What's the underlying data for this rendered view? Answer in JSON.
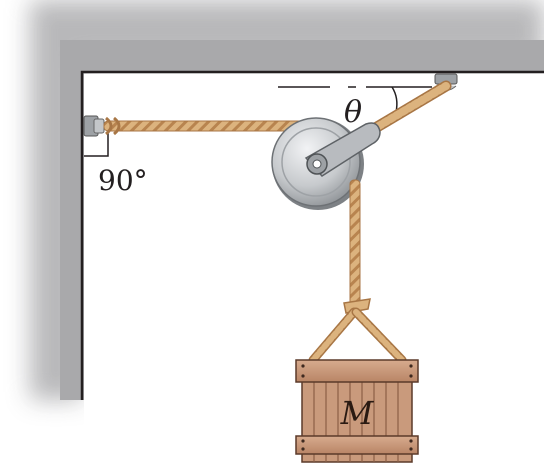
{
  "labels": {
    "wall_angle": "90°",
    "rope_angle": "θ",
    "mass": "M"
  },
  "colors": {
    "wall_shadow": "#b9b9bb",
    "rope": "#d9b07a",
    "pulley": "#c9ccd0",
    "crate": "#c99a7c"
  }
}
